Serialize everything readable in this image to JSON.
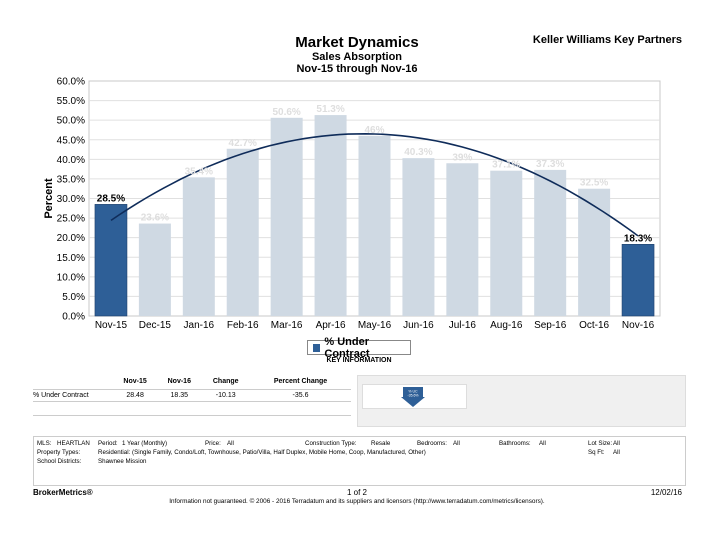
{
  "header": {
    "title": "Market Dynamics",
    "subtitle": "Sales Absorption",
    "date_range": "Nov-15 through Nov-16",
    "company": "Keller Williams Key Partners"
  },
  "chart_data": {
    "type": "bar",
    "ylabel": "Percent",
    "ylim": [
      0,
      60
    ],
    "yticks": [
      "0.0%",
      "5.0%",
      "10.0%",
      "15.0%",
      "20.0%",
      "25.0%",
      "30.0%",
      "35.0%",
      "40.0%",
      "45.0%",
      "50.0%",
      "55.0%",
      "60.0%"
    ],
    "categories": [
      "Nov-15",
      "Dec-15",
      "Jan-16",
      "Feb-16",
      "Mar-16",
      "Apr-16",
      "May-16",
      "Jun-16",
      "Jul-16",
      "Aug-16",
      "Sep-16",
      "Oct-16",
      "Nov-16"
    ],
    "values": [
      28.5,
      23.6,
      35.4,
      42.7,
      50.6,
      51.3,
      46,
      40.3,
      39,
      37.1,
      37.3,
      32.5,
      18.3
    ],
    "labels": [
      "28.5%",
      "23.6%",
      "35.4%",
      "42.7%",
      "50.6%",
      "51.3%",
      "46%",
      "40.3%",
      "39%",
      "37.1%",
      "37.3%",
      "32.5%",
      "18.3%"
    ],
    "highlighted": [
      0,
      12
    ],
    "trendline": "polynomial",
    "grid": true,
    "colors": {
      "highlight": "#2e5f97",
      "bar": "#cfd9e3",
      "trend": "#0f2c5a"
    }
  },
  "legend": {
    "label": "% Under Contract"
  },
  "key_info": "KEY INFORMATION",
  "stats": {
    "headers": [
      "",
      "Nov-15",
      "Nov-16",
      "Change",
      "Percent Change"
    ],
    "rows": [
      {
        "label": "% Under Contract",
        "nov15": "28.48",
        "nov16": "18.35",
        "change": "-10.13",
        "pct": "-35.6"
      }
    ]
  },
  "arrow_card": {
    "line1": "% UC",
    "line2": "-35.6%"
  },
  "criteria": {
    "mls_label": "MLS:",
    "mls": "HEARTLAN",
    "period_label": "Period:",
    "period": "1 Year (Monthly)",
    "price_label": "Price:",
    "price": "All",
    "construction_label": "Construction Type:",
    "construction": "Resale",
    "bedrooms_label": "Bedrooms:",
    "bedrooms": "All",
    "bathrooms_label": "Bathrooms:",
    "bathrooms": "All",
    "lotsize_label": "Lot Size:",
    "lotsize": "All",
    "proptypes_label": "Property Types:",
    "proptypes": "Residential: (Single Family, Condo/Loft, Townhouse, Patio/Villa, Half Duplex, Mobile Home, Coop, Manufactured, Other)",
    "sqft_label": "Sq Ft:",
    "sqft": "All",
    "school_label": "School Districts:",
    "school": "Shawnee Mission"
  },
  "footer": {
    "brand": "BrokerMetrics®",
    "page": "1 of 2",
    "date": "12/02/16",
    "note": "Information not guaranteed.  © 2006 - 2016 Terradatum and its suppliers and licensors (http://www.terradatum.com/metrics/licensors)."
  }
}
